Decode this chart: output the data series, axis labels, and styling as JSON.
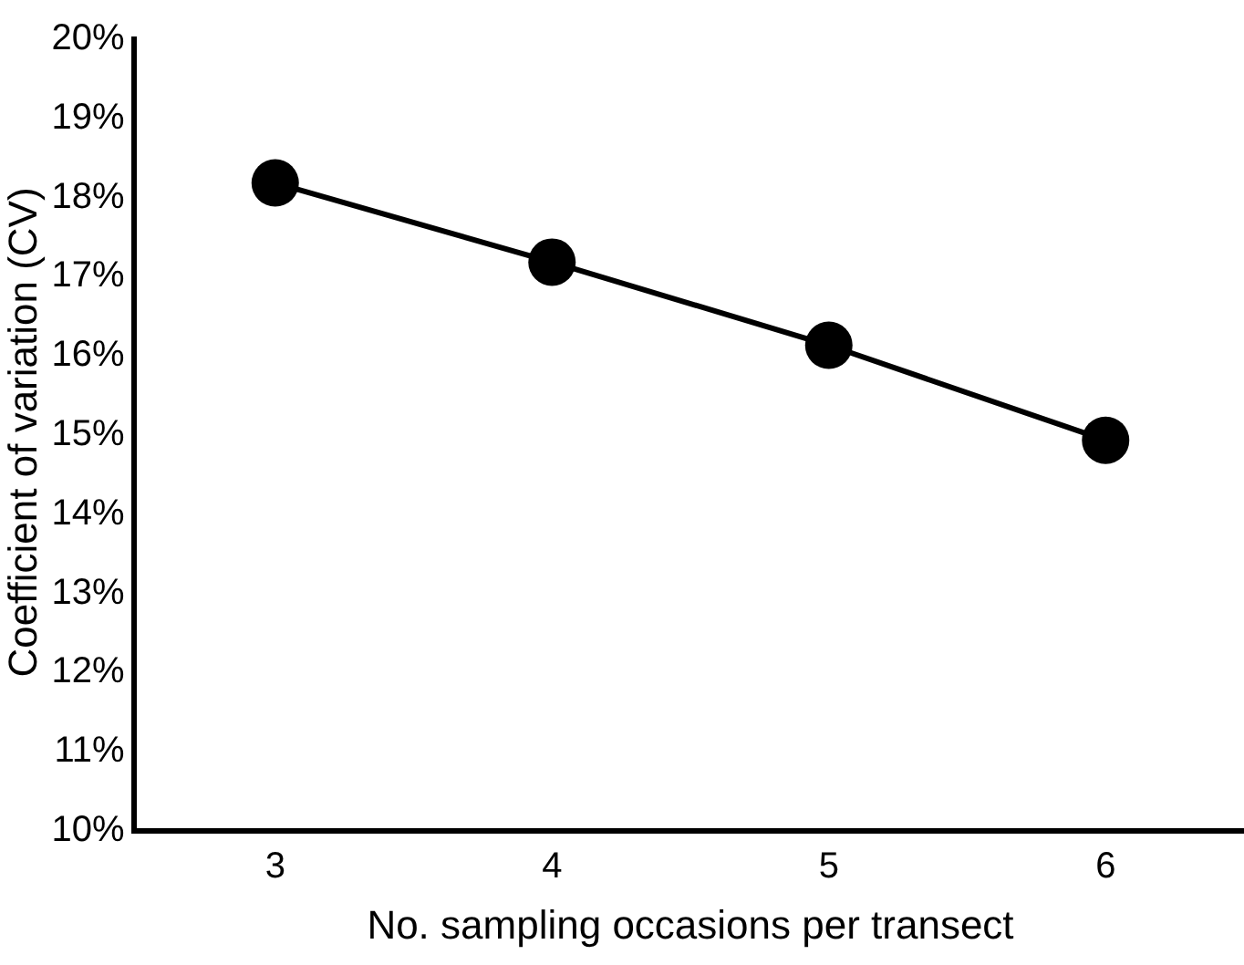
{
  "chart_data": {
    "type": "line",
    "xlabel": "No. sampling occasions per transect",
    "ylabel": "Coefficient of variation (CV)",
    "categories": [
      "3",
      "4",
      "5",
      "6"
    ],
    "series": [
      {
        "color": "#000000",
        "values": [
          18.15,
          17.15,
          16.1,
          14.9
        ]
      }
    ],
    "ylim": [
      10,
      20
    ],
    "yticks": [
      {
        "value": 10,
        "label": "10%"
      },
      {
        "value": 11,
        "label": "11%"
      },
      {
        "value": 12,
        "label": "12%"
      },
      {
        "value": 13,
        "label": "13%"
      },
      {
        "value": 14,
        "label": "14%"
      },
      {
        "value": 15,
        "label": "15%"
      },
      {
        "value": 16,
        "label": "16%"
      },
      {
        "value": 17,
        "label": "17%"
      },
      {
        "value": 18,
        "label": "18%"
      },
      {
        "value": 19,
        "label": "19%"
      },
      {
        "value": 20,
        "label": "20%"
      }
    ],
    "marker": "circle",
    "line_style": "solid"
  }
}
